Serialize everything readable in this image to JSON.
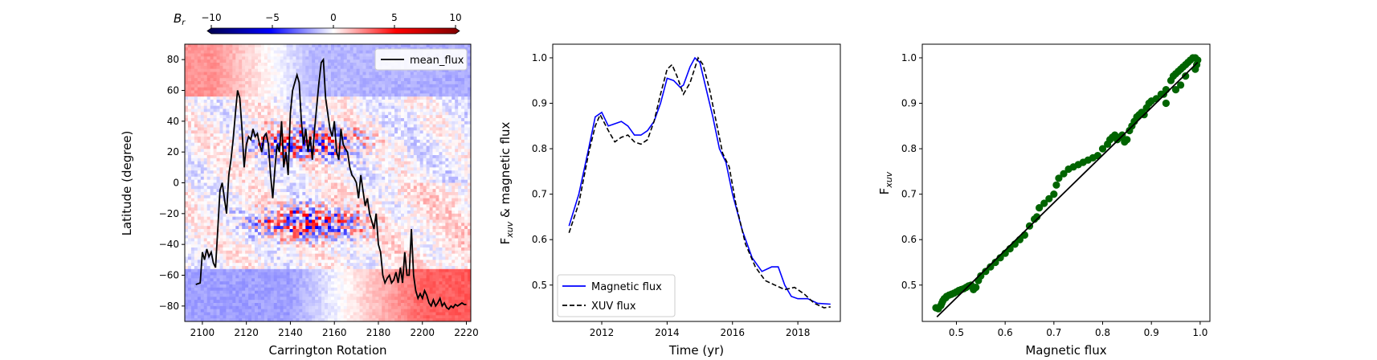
{
  "chart_data": [
    {
      "type": "heatmap",
      "xlabel": "Carrington Rotation",
      "ylabel": "Latitude (degree)",
      "xlim": [
        2092,
        2222
      ],
      "ylim": [
        -90,
        90
      ],
      "xticks": [
        2100,
        2120,
        2140,
        2160,
        2180,
        2200,
        2220
      ],
      "yticks": [
        -80,
        -60,
        -40,
        -20,
        0,
        20,
        40,
        60,
        80
      ],
      "colorbar": {
        "label": "B",
        "label_sub": "r",
        "range": [
          -10,
          10
        ],
        "ticks": [
          -10,
          -5,
          0,
          5,
          10
        ],
        "cmap": "seismic",
        "colors": [
          "#00004c",
          "#0000ff",
          "#ffffff",
          "#ff0000",
          "#7f0000"
        ]
      },
      "legend": {
        "position": "top-right",
        "entries": [
          "mean_flux"
        ]
      },
      "series": [
        {
          "name": "mean_flux",
          "color": "#000000",
          "x": [
            2097,
            2099,
            2100,
            2101,
            2102,
            2103,
            2104,
            2105,
            2106,
            2107,
            2108,
            2109,
            2110,
            2111,
            2112,
            2113,
            2114,
            2115,
            2116,
            2117,
            2118,
            2119,
            2120,
            2121,
            2122,
            2123,
            2124,
            2125,
            2126,
            2127,
            2128,
            2129,
            2130,
            2131,
            2132,
            2133,
            2134,
            2135,
            2136,
            2137,
            2138,
            2139,
            2140,
            2141,
            2142,
            2143,
            2144,
            2145,
            2146,
            2147,
            2148,
            2149,
            2150,
            2151,
            2152,
            2153,
            2154,
            2155,
            2156,
            2157,
            2158,
            2159,
            2160,
            2161,
            2162,
            2163,
            2164,
            2165,
            2166,
            2167,
            2168,
            2169,
            2170,
            2171,
            2172,
            2173,
            2174,
            2175,
            2176,
            2177,
            2178,
            2179,
            2180,
            2181,
            2182,
            2183,
            2184,
            2185,
            2186,
            2187,
            2188,
            2189,
            2190,
            2191,
            2192,
            2193,
            2194,
            2195,
            2196,
            2197,
            2198,
            2199,
            2200,
            2201,
            2202,
            2203,
            2204,
            2205,
            2206,
            2207,
            2208,
            2209,
            2210,
            2211,
            2212,
            2213,
            2214,
            2215,
            2216,
            2217,
            2218,
            2219,
            2220
          ],
          "y": [
            -66,
            -65,
            -45,
            -50,
            -43,
            -48,
            -45,
            -52,
            -55,
            -30,
            -5,
            0,
            -10,
            -20,
            5,
            15,
            28,
            45,
            60,
            55,
            35,
            10,
            25,
            30,
            28,
            35,
            30,
            32,
            25,
            20,
            30,
            32,
            25,
            5,
            -10,
            10,
            25,
            20,
            40,
            10,
            20,
            5,
            45,
            60,
            65,
            70,
            65,
            40,
            25,
            35,
            20,
            30,
            15,
            35,
            50,
            65,
            78,
            80,
            55,
            45,
            35,
            30,
            40,
            20,
            15,
            35,
            25,
            22,
            20,
            10,
            5,
            3,
            0,
            -10,
            5,
            -5,
            -15,
            -10,
            -20,
            -25,
            -30,
            -20,
            -40,
            -45,
            -60,
            -65,
            -62,
            -60,
            -65,
            -63,
            -58,
            -65,
            -55,
            -65,
            -45,
            -60,
            -60,
            -30,
            -60,
            -70,
            -75,
            -72,
            -75,
            -70,
            -73,
            -78,
            -80,
            -76,
            -80,
            -78,
            -75,
            -80,
            -78,
            -81,
            -82,
            -80,
            -81,
            -79,
            -80,
            -79,
            -78,
            -79,
            -79
          ]
        }
      ]
    },
    {
      "type": "line",
      "xlabel": "Time (yr)",
      "ylabel_main": "F",
      "ylabel_sub": "xuv",
      "ylabel_rest": " & magnetic flux",
      "xlim": [
        2010.5,
        2019.3
      ],
      "ylim": [
        0.42,
        1.03
      ],
      "xticks": [
        2012,
        2014,
        2016,
        2018
      ],
      "yticks": [
        0.5,
        0.6,
        0.7,
        0.8,
        0.9,
        1.0
      ],
      "legend": {
        "position": "lower-left",
        "entries": [
          "Magnetic flux",
          "XUV flux"
        ]
      },
      "series": [
        {
          "name": "Magnetic flux",
          "color": "#0000ff",
          "style": "solid",
          "x": [
            2011.0,
            2011.3,
            2011.6,
            2011.8,
            2012.0,
            2012.2,
            2012.4,
            2012.6,
            2012.8,
            2013.0,
            2013.2,
            2013.4,
            2013.6,
            2013.8,
            2014.0,
            2014.2,
            2014.4,
            2014.5,
            2014.7,
            2014.85,
            2015.0,
            2015.2,
            2015.4,
            2015.6,
            2015.8,
            2016.0,
            2016.3,
            2016.6,
            2016.9,
            2017.2,
            2017.4,
            2017.6,
            2017.8,
            2018.0,
            2018.3,
            2018.6,
            2019.0
          ],
          "y": [
            0.63,
            0.7,
            0.8,
            0.87,
            0.88,
            0.85,
            0.855,
            0.86,
            0.85,
            0.83,
            0.83,
            0.84,
            0.86,
            0.9,
            0.955,
            0.95,
            0.935,
            0.94,
            0.98,
            1.0,
            0.99,
            0.93,
            0.87,
            0.8,
            0.77,
            0.7,
            0.62,
            0.56,
            0.53,
            0.54,
            0.54,
            0.5,
            0.475,
            0.47,
            0.47,
            0.46,
            0.458
          ]
        },
        {
          "name": "XUV flux",
          "color": "#000000",
          "style": "dashed",
          "x": [
            2011.0,
            2011.3,
            2011.6,
            2011.8,
            2011.95,
            2012.2,
            2012.4,
            2012.6,
            2012.8,
            2013.0,
            2013.2,
            2013.4,
            2013.6,
            2013.8,
            2014.0,
            2014.15,
            2014.3,
            2014.5,
            2014.7,
            2014.95,
            2015.1,
            2015.3,
            2015.5,
            2015.7,
            2015.9,
            2016.1,
            2016.4,
            2016.7,
            2017.0,
            2017.3,
            2017.6,
            2017.9,
            2018.2,
            2018.5,
            2018.8,
            2019.0
          ],
          "y": [
            0.615,
            0.68,
            0.79,
            0.85,
            0.875,
            0.84,
            0.815,
            0.825,
            0.83,
            0.815,
            0.81,
            0.82,
            0.86,
            0.92,
            0.975,
            0.985,
            0.96,
            0.92,
            0.945,
            1.0,
            0.985,
            0.93,
            0.86,
            0.79,
            0.76,
            0.68,
            0.59,
            0.54,
            0.51,
            0.5,
            0.49,
            0.495,
            0.48,
            0.46,
            0.45,
            0.452
          ]
        }
      ]
    },
    {
      "type": "scatter",
      "xlabel": "Magnetic flux",
      "ylabel_main": "F",
      "ylabel_sub": "xuv",
      "xlim": [
        0.43,
        1.02
      ],
      "ylim": [
        0.42,
        1.03
      ],
      "xticks": [
        0.5,
        0.6,
        0.7,
        0.8,
        0.9,
        1.0
      ],
      "yticks": [
        0.5,
        0.6,
        0.7,
        0.8,
        0.9,
        1.0
      ],
      "point_color": "#006400",
      "fit_line": {
        "x": [
          0.46,
          0.995
        ],
        "y": [
          0.43,
          0.99
        ],
        "color": "#000000"
      },
      "points": [
        [
          0.458,
          0.45
        ],
        [
          0.463,
          0.448
        ],
        [
          0.468,
          0.455
        ],
        [
          0.47,
          0.46
        ],
        [
          0.472,
          0.465
        ],
        [
          0.475,
          0.47
        ],
        [
          0.478,
          0.472
        ],
        [
          0.48,
          0.475
        ],
        [
          0.485,
          0.478
        ],
        [
          0.49,
          0.48
        ],
        [
          0.495,
          0.482
        ],
        [
          0.5,
          0.485
        ],
        [
          0.505,
          0.488
        ],
        [
          0.51,
          0.49
        ],
        [
          0.515,
          0.492
        ],
        [
          0.52,
          0.495
        ],
        [
          0.525,
          0.498
        ],
        [
          0.53,
          0.5
        ],
        [
          0.535,
          0.49
        ],
        [
          0.54,
          0.495
        ],
        [
          0.545,
          0.51
        ],
        [
          0.55,
          0.52
        ],
        [
          0.56,
          0.53
        ],
        [
          0.57,
          0.54
        ],
        [
          0.58,
          0.55
        ],
        [
          0.59,
          0.56
        ],
        [
          0.6,
          0.57
        ],
        [
          0.61,
          0.58
        ],
        [
          0.62,
          0.59
        ],
        [
          0.63,
          0.6
        ],
        [
          0.64,
          0.61
        ],
        [
          0.65,
          0.63
        ],
        [
          0.66,
          0.645
        ],
        [
          0.665,
          0.65
        ],
        [
          0.67,
          0.67
        ],
        [
          0.68,
          0.68
        ],
        [
          0.69,
          0.69
        ],
        [
          0.7,
          0.7
        ],
        [
          0.705,
          0.72
        ],
        [
          0.71,
          0.735
        ],
        [
          0.72,
          0.745
        ],
        [
          0.73,
          0.755
        ],
        [
          0.74,
          0.76
        ],
        [
          0.75,
          0.765
        ],
        [
          0.76,
          0.77
        ],
        [
          0.77,
          0.775
        ],
        [
          0.78,
          0.78
        ],
        [
          0.79,
          0.785
        ],
        [
          0.8,
          0.8
        ],
        [
          0.81,
          0.81
        ],
        [
          0.815,
          0.82
        ],
        [
          0.82,
          0.825
        ],
        [
          0.825,
          0.83
        ],
        [
          0.83,
          0.82
        ],
        [
          0.835,
          0.825
        ],
        [
          0.84,
          0.83
        ],
        [
          0.845,
          0.815
        ],
        [
          0.85,
          0.82
        ],
        [
          0.855,
          0.84
        ],
        [
          0.86,
          0.85
        ],
        [
          0.865,
          0.86
        ],
        [
          0.87,
          0.87
        ],
        [
          0.875,
          0.875
        ],
        [
          0.88,
          0.88
        ],
        [
          0.885,
          0.875
        ],
        [
          0.89,
          0.89
        ],
        [
          0.895,
          0.9
        ],
        [
          0.9,
          0.905
        ],
        [
          0.91,
          0.91
        ],
        [
          0.92,
          0.92
        ],
        [
          0.93,
          0.93
        ],
        [
          0.94,
          0.95
        ],
        [
          0.945,
          0.96
        ],
        [
          0.95,
          0.965
        ],
        [
          0.955,
          0.97
        ],
        [
          0.96,
          0.975
        ],
        [
          0.965,
          0.98
        ],
        [
          0.97,
          0.985
        ],
        [
          0.975,
          0.99
        ],
        [
          0.98,
          0.995
        ],
        [
          0.985,
          1.0
        ],
        [
          0.99,
          1.0
        ],
        [
          0.995,
          0.995
        ],
        [
          0.993,
          0.985
        ],
        [
          0.99,
          0.975
        ],
        [
          0.95,
          0.93
        ],
        [
          0.96,
          0.94
        ],
        [
          0.97,
          0.96
        ],
        [
          0.93,
          0.9
        ],
        [
          0.925,
          0.92
        ]
      ]
    }
  ]
}
